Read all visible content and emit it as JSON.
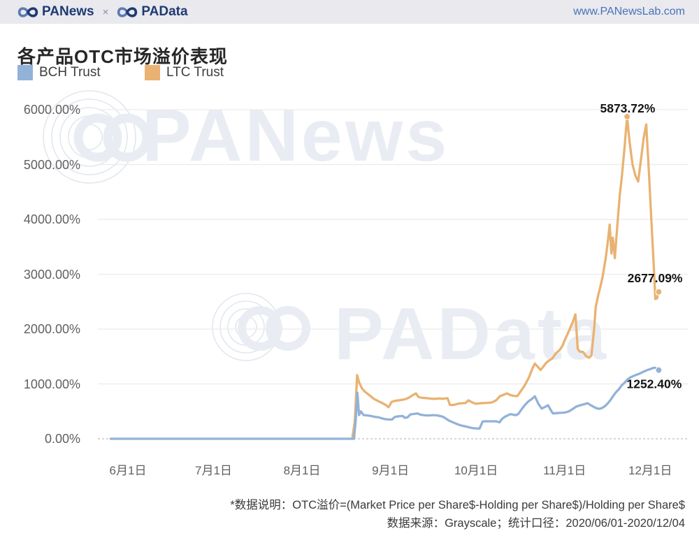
{
  "header": {
    "brand_left": "PANews",
    "separator": "×",
    "brand_right": "PAData",
    "url": "www.PANewsLab.com"
  },
  "title": "各产品OTC市场溢价表现",
  "watermarks": [
    {
      "text": "PANews"
    },
    {
      "text": "PAData"
    }
  ],
  "footer": {
    "note1": "*数据说明：OTC溢价=(Market Price per Share$-Holding per Share$)/Holding per Share$",
    "note2": "数据来源：Grayscale；统计口径：2020/06/01-2020/12/04"
  },
  "colors": {
    "brand_navy": "#1e3a72",
    "brand_light_loop": "#5b7ab5",
    "link_blue": "#4a72b8",
    "topbar_bg": "#e9e9ee",
    "watermark": "#e9edf3",
    "watermark_arcs": "#e2e7ee",
    "grid_line": "#ebebeb",
    "zero_line": "#bdbdbd",
    "annotation": "#141414",
    "axis_label": "#606060"
  },
  "chart_data": {
    "type": "line",
    "title": "各产品OTC市场溢价表现",
    "x_note": "x = day index, day 0 = 2020/06/01, last day 186 = 2020/12/04",
    "ylim": [
      0,
      6000
    ],
    "grid": "horizontal-only, zero line dashed",
    "legend_position": "top-left",
    "y_ticks": [
      {
        "value": 0,
        "label": "0.00%"
      },
      {
        "value": 1000,
        "label": "1000.00%"
      },
      {
        "value": 2000,
        "label": "2000.00%"
      },
      {
        "value": 3000,
        "label": "3000.00%"
      },
      {
        "value": 4000,
        "label": "4000.00%"
      },
      {
        "value": 5000,
        "label": "5000.00%"
      },
      {
        "value": 6000,
        "label": "6000.00%"
      }
    ],
    "x_ticks": [
      {
        "day": 0,
        "label": "6月1日"
      },
      {
        "day": 30,
        "label": "7月1日"
      },
      {
        "day": 61,
        "label": "8月1日"
      },
      {
        "day": 92,
        "label": "9月1日"
      },
      {
        "day": 122,
        "label": "10月1日"
      },
      {
        "day": 153,
        "label": "11月1日"
      },
      {
        "day": 183,
        "label": "12月1日"
      }
    ],
    "series": [
      {
        "id": "ltc-trust",
        "name": "LTC Trust",
        "color": "#e9b271",
        "points": [
          [
            78.6,
            0
          ],
          [
            79.5,
            320
          ],
          [
            80.3,
            1160
          ],
          [
            81,
            1030
          ],
          [
            82,
            920
          ],
          [
            83,
            860
          ],
          [
            84.5,
            800
          ],
          [
            86,
            735
          ],
          [
            87.5,
            690
          ],
          [
            89,
            655
          ],
          [
            90.5,
            612
          ],
          [
            91.3,
            575
          ],
          [
            92.4,
            672
          ],
          [
            93.5,
            690
          ],
          [
            94.8,
            700
          ],
          [
            96,
            710
          ],
          [
            97.3,
            722
          ],
          [
            98.5,
            752
          ],
          [
            99.7,
            792
          ],
          [
            100.9,
            828
          ],
          [
            101.8,
            762
          ],
          [
            103,
            748
          ],
          [
            104.6,
            742
          ],
          [
            106,
            732
          ],
          [
            107.5,
            728
          ],
          [
            109,
            735
          ],
          [
            110.5,
            730
          ],
          [
            112,
            740
          ],
          [
            112.8,
            618
          ],
          [
            114,
            615
          ],
          [
            115.6,
            638
          ],
          [
            117,
            648
          ],
          [
            118.3,
            652
          ],
          [
            119.3,
            700
          ],
          [
            120.5,
            668
          ],
          [
            121.8,
            638
          ],
          [
            123,
            645
          ],
          [
            124.5,
            652
          ],
          [
            126,
            655
          ],
          [
            127.5,
            662
          ],
          [
            129,
            700
          ],
          [
            130.3,
            775
          ],
          [
            131.5,
            800
          ],
          [
            132.8,
            828
          ],
          [
            134,
            798
          ],
          [
            135.2,
            782
          ],
          [
            136.5,
            780
          ],
          [
            137.8,
            880
          ],
          [
            139,
            968
          ],
          [
            140.5,
            1120
          ],
          [
            141.8,
            1290
          ],
          [
            142.6,
            1372
          ],
          [
            143.6,
            1315
          ],
          [
            144.6,
            1255
          ],
          [
            145.6,
            1320
          ],
          [
            146.6,
            1388
          ],
          [
            147.6,
            1428
          ],
          [
            148.7,
            1465
          ],
          [
            150,
            1560
          ],
          [
            151.3,
            1620
          ],
          [
            152.3,
            1700
          ],
          [
            153.2,
            1815
          ],
          [
            154,
            1905
          ],
          [
            154.8,
            2000
          ],
          [
            155.8,
            2120
          ],
          [
            156.8,
            2268
          ],
          [
            157.6,
            1640
          ],
          [
            158.3,
            1590
          ],
          [
            159.5,
            1582
          ],
          [
            160.6,
            1505
          ],
          [
            161.6,
            1478
          ],
          [
            162.4,
            1520
          ],
          [
            163.3,
            1980
          ],
          [
            163.9,
            2395
          ],
          [
            164.7,
            2600
          ],
          [
            165.4,
            2742
          ],
          [
            166.3,
            2945
          ],
          [
            167.4,
            3290
          ],
          [
            168.2,
            3620
          ],
          [
            168.8,
            3905
          ],
          [
            169.4,
            3380
          ],
          [
            169.9,
            3668
          ],
          [
            170.6,
            3295
          ],
          [
            171.5,
            3900
          ],
          [
            172.3,
            4420
          ],
          [
            173.1,
            4800
          ],
          [
            174,
            5300
          ],
          [
            174.9,
            5873.72
          ],
          [
            175.8,
            5400
          ],
          [
            176.8,
            5000
          ],
          [
            177.8,
            4800
          ],
          [
            178.8,
            4690
          ],
          [
            179.8,
            5100
          ],
          [
            180.7,
            5480
          ],
          [
            181.6,
            5733
          ],
          [
            182.6,
            4800
          ],
          [
            183.5,
            3900
          ],
          [
            184.3,
            3100
          ],
          [
            184.8,
            2548
          ],
          [
            185.4,
            2560
          ],
          [
            186,
            2677.09
          ]
        ],
        "markers": [
          [
            174.9,
            5873.72
          ],
          [
            186,
            2677.09
          ]
        ],
        "last_value": "2677.09%"
      },
      {
        "id": "bch-trust",
        "name": "BCH Trust",
        "color": "#92b2d8",
        "points": [
          [
            -6,
            0
          ],
          [
            0,
            0
          ],
          [
            15,
            0
          ],
          [
            30,
            0
          ],
          [
            45,
            0
          ],
          [
            61,
            0
          ],
          [
            70,
            0
          ],
          [
            76,
            0
          ],
          [
            79.2,
            0
          ],
          [
            79.8,
            320
          ],
          [
            80.4,
            840
          ],
          [
            81,
            432
          ],
          [
            81.6,
            500
          ],
          [
            82.6,
            432
          ],
          [
            84,
            426
          ],
          [
            85,
            418
          ],
          [
            86.5,
            400
          ],
          [
            88,
            390
          ],
          [
            90,
            358
          ],
          [
            91.5,
            352
          ],
          [
            92.5,
            350
          ],
          [
            93.5,
            398
          ],
          [
            95,
            412
          ],
          [
            96.3,
            415
          ],
          [
            97,
            382
          ],
          [
            98,
            392
          ],
          [
            99,
            445
          ],
          [
            100.5,
            455
          ],
          [
            101.5,
            462
          ],
          [
            102.5,
            440
          ],
          [
            104,
            428
          ],
          [
            105.5,
            425
          ],
          [
            107,
            432
          ],
          [
            108.5,
            426
          ],
          [
            110,
            408
          ],
          [
            110.8,
            390
          ],
          [
            111.6,
            362
          ],
          [
            112.4,
            335
          ],
          [
            113.5,
            310
          ],
          [
            115,
            275
          ],
          [
            115.8,
            258
          ],
          [
            117,
            240
          ],
          [
            118.3,
            225
          ],
          [
            119.5,
            210
          ],
          [
            120.6,
            196
          ],
          [
            122,
            188
          ],
          [
            123.2,
            186
          ],
          [
            124.3,
            315
          ],
          [
            125.5,
            320
          ],
          [
            127,
            318
          ],
          [
            128.4,
            320
          ],
          [
            129.4,
            315
          ],
          [
            130.2,
            300
          ],
          [
            131,
            358
          ],
          [
            132,
            400
          ],
          [
            132.9,
            422
          ],
          [
            134,
            450
          ],
          [
            135,
            440
          ],
          [
            136,
            430
          ],
          [
            136.8,
            455
          ],
          [
            137.7,
            520
          ],
          [
            139,
            610
          ],
          [
            140.3,
            680
          ],
          [
            141.5,
            725
          ],
          [
            142.6,
            775
          ],
          [
            143.8,
            640
          ],
          [
            145,
            550
          ],
          [
            146.2,
            582
          ],
          [
            147.2,
            612
          ],
          [
            148.2,
            518
          ],
          [
            148.9,
            462
          ],
          [
            150,
            468
          ],
          [
            151.5,
            472
          ],
          [
            153,
            478
          ],
          [
            154.5,
            500
          ],
          [
            156,
            548
          ],
          [
            157,
            585
          ],
          [
            158.5,
            612
          ],
          [
            160,
            632
          ],
          [
            161,
            650
          ],
          [
            162,
            618
          ],
          [
            163,
            588
          ],
          [
            164,
            560
          ],
          [
            165,
            546
          ],
          [
            166,
            558
          ],
          [
            167,
            590
          ],
          [
            168,
            638
          ],
          [
            169,
            700
          ],
          [
            170,
            778
          ],
          [
            171,
            848
          ],
          [
            172,
            902
          ],
          [
            173,
            975
          ],
          [
            174,
            1022
          ],
          [
            175,
            1078
          ],
          [
            176,
            1118
          ],
          [
            177,
            1142
          ],
          [
            178,
            1164
          ],
          [
            179,
            1182
          ],
          [
            180,
            1206
          ],
          [
            181,
            1232
          ],
          [
            182,
            1254
          ],
          [
            183,
            1270
          ],
          [
            184,
            1290
          ],
          [
            184.8,
            1294
          ],
          [
            185.4,
            1278
          ],
          [
            186,
            1252.4
          ]
        ],
        "markers": [
          [
            186,
            1252.4
          ]
        ],
        "last_value": "1252.40%"
      }
    ],
    "annotations": [
      {
        "text": "5873.72%",
        "day": 175.1,
        "value": 5873.72,
        "dy": -6
      },
      {
        "text": "2677.09%",
        "day": 184.7,
        "value": 2677.09,
        "dy": -14
      },
      {
        "text": "1252.40%",
        "day": 184.4,
        "value": 1252.4,
        "dy": 26
      }
    ]
  }
}
